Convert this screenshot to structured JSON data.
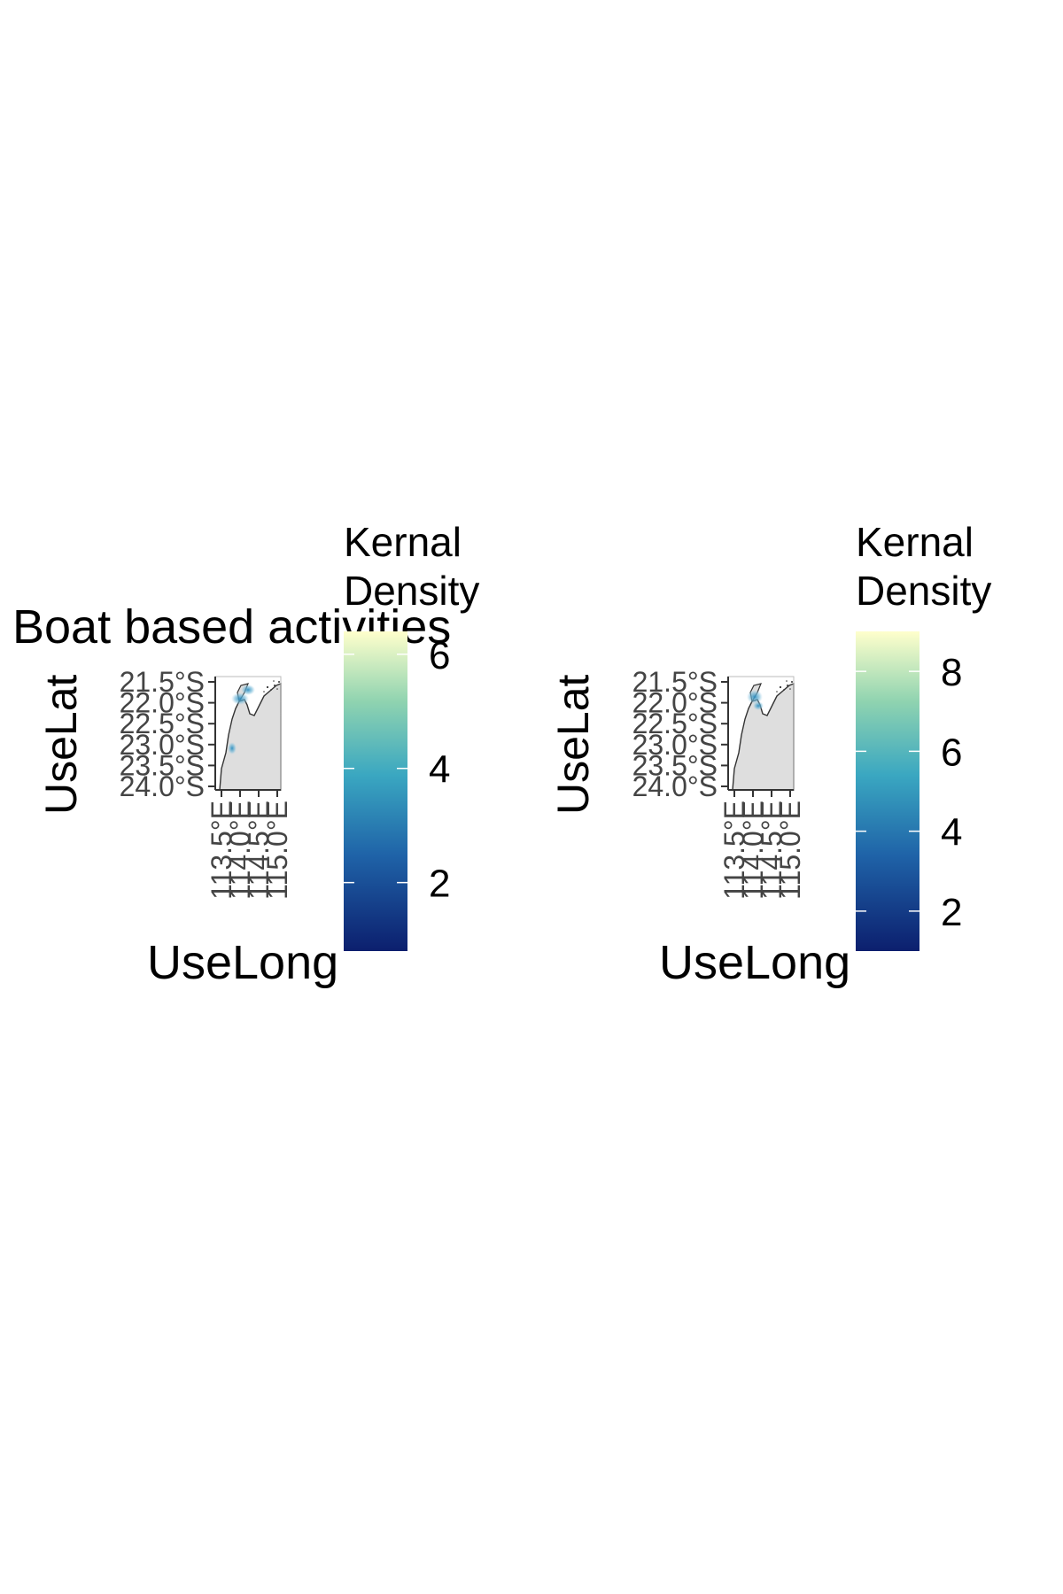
{
  "colors": {
    "land": "#dedede",
    "coast": "#333333",
    "axis": "#333333",
    "tick_text": "#444444",
    "density_low": "#0c1f6e",
    "density_mid": "#2b8cbe",
    "density_high": "#ffffcc"
  },
  "panels": [
    {
      "title": "Boat based activities",
      "xlabel": "UseLong",
      "ylabel": "UseLat",
      "legend_title_line1": "Kernal",
      "legend_title_line2": "Density",
      "lat_ticks": [
        "21.5°S",
        "22.0°S",
        "22.5°S",
        "23.0°S",
        "23.5°S",
        "24.0°S"
      ],
      "lon_ticks": [
        "113.5°E",
        "114.0°E",
        "114.5°E",
        "115.0°E"
      ],
      "legend_ticks": [
        {
          "value": 2,
          "label": "2"
        },
        {
          "value": 4,
          "label": "4"
        },
        {
          "value": 6,
          "label": "6"
        }
      ],
      "legend_range": [
        0.8,
        6.4
      ]
    },
    {
      "title": "",
      "xlabel": "UseLong",
      "ylabel": "UseLat",
      "legend_title_line1": "Kernal",
      "legend_title_line2": "Density",
      "lat_ticks": [
        "21.5°S",
        "22.0°S",
        "22.5°S",
        "23.0°S",
        "23.5°S",
        "24.0°S"
      ],
      "lon_ticks": [
        "113.5°E",
        "114.0°E",
        "114.5°E",
        "115.0°E"
      ],
      "legend_ticks": [
        {
          "value": 2,
          "label": "2"
        },
        {
          "value": 4,
          "label": "4"
        },
        {
          "value": 6,
          "label": "6"
        },
        {
          "value": 8,
          "label": "8"
        }
      ],
      "legend_range": [
        1.0,
        9.0
      ]
    }
  ]
}
